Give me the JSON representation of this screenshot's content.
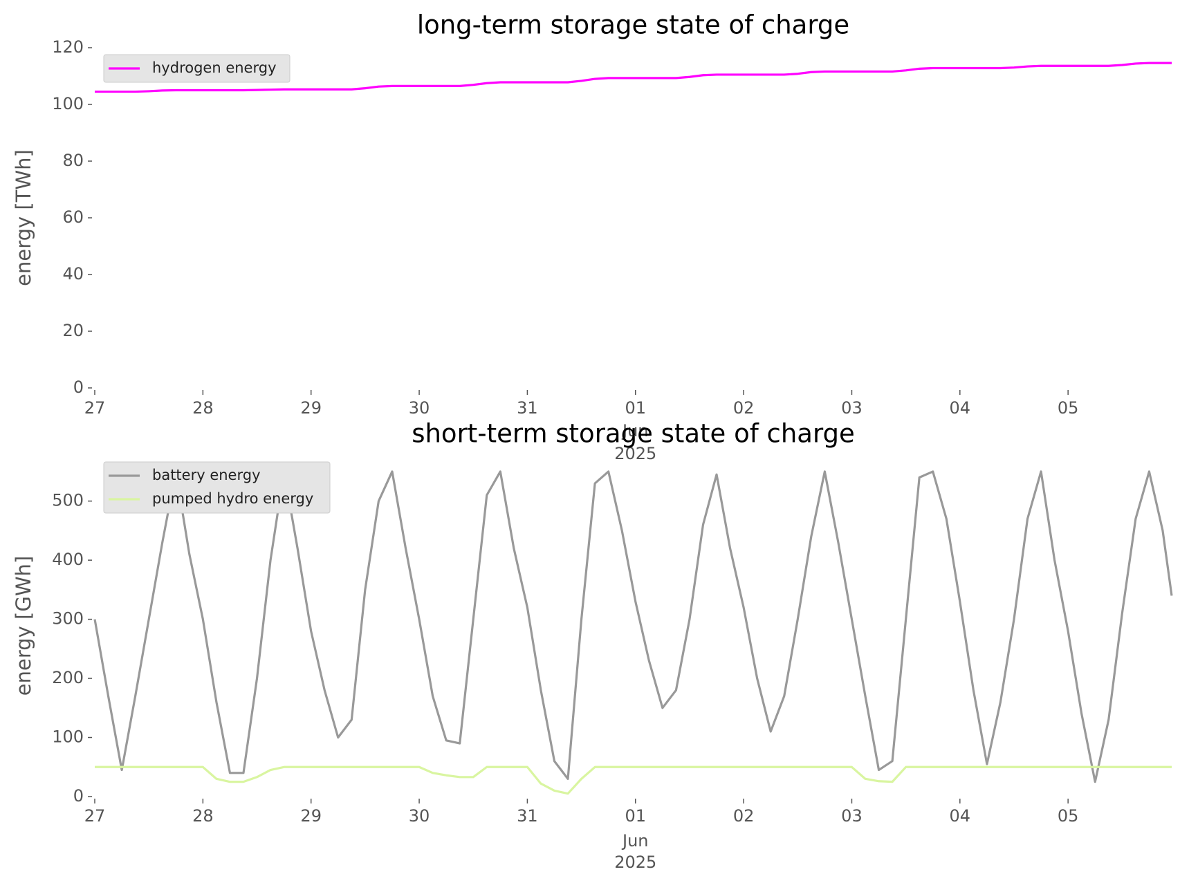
{
  "chart_data": [
    {
      "type": "line",
      "title": "long-term storage state of charge",
      "ylabel": "energy [TWh]",
      "x": [
        "2025-05-27T00:00",
        "2025-05-27T03:00",
        "2025-05-27T06:00",
        "2025-05-27T09:00",
        "2025-05-27T12:00",
        "2025-05-27T15:00",
        "2025-05-27T18:00",
        "2025-05-27T21:00",
        "2025-05-28T00:00",
        "2025-05-28T03:00",
        "2025-05-28T06:00",
        "2025-05-28T09:00",
        "2025-05-28T12:00",
        "2025-05-28T15:00",
        "2025-05-28T18:00",
        "2025-05-28T21:00",
        "2025-05-29T00:00",
        "2025-05-29T03:00",
        "2025-05-29T06:00",
        "2025-05-29T09:00",
        "2025-05-29T12:00",
        "2025-05-29T15:00",
        "2025-05-29T18:00",
        "2025-05-29T21:00",
        "2025-05-30T00:00",
        "2025-05-30T03:00",
        "2025-05-30T06:00",
        "2025-05-30T09:00",
        "2025-05-30T12:00",
        "2025-05-30T15:00",
        "2025-05-30T18:00",
        "2025-05-30T21:00",
        "2025-05-31T00:00",
        "2025-05-31T03:00",
        "2025-05-31T06:00",
        "2025-05-31T09:00",
        "2025-05-31T12:00",
        "2025-05-31T15:00",
        "2025-05-31T18:00",
        "2025-05-31T21:00",
        "2025-06-01T00:00",
        "2025-06-01T03:00",
        "2025-06-01T06:00",
        "2025-06-01T09:00",
        "2025-06-01T12:00",
        "2025-06-01T15:00",
        "2025-06-01T18:00",
        "2025-06-01T21:00",
        "2025-06-02T00:00",
        "2025-06-02T03:00",
        "2025-06-02T06:00",
        "2025-06-02T09:00",
        "2025-06-02T12:00",
        "2025-06-02T15:00",
        "2025-06-02T18:00",
        "2025-06-02T21:00",
        "2025-06-03T00:00",
        "2025-06-03T03:00",
        "2025-06-03T06:00",
        "2025-06-03T09:00",
        "2025-06-03T12:00",
        "2025-06-03T15:00",
        "2025-06-03T18:00",
        "2025-06-03T21:00",
        "2025-06-04T00:00",
        "2025-06-04T03:00",
        "2025-06-04T06:00",
        "2025-06-04T09:00",
        "2025-06-04T12:00",
        "2025-06-04T15:00",
        "2025-06-04T18:00",
        "2025-06-04T21:00",
        "2025-06-05T00:00",
        "2025-06-05T03:00",
        "2025-06-05T06:00",
        "2025-06-05T09:00",
        "2025-06-05T12:00",
        "2025-06-05T15:00",
        "2025-06-05T18:00",
        "2025-06-05T21:00",
        "2025-06-05T23:00"
      ],
      "series": [
        {
          "name": "hydrogen energy",
          "color": "#ff00ff",
          "values": [
            104.5,
            104.5,
            104.5,
            104.5,
            104.65,
            104.9,
            105.0,
            105.0,
            105.0,
            105.0,
            105.0,
            105.0,
            105.1,
            105.2,
            105.3,
            105.3,
            105.3,
            105.3,
            105.3,
            105.3,
            105.7,
            106.3,
            106.5,
            106.5,
            106.5,
            106.5,
            106.5,
            106.5,
            106.9,
            107.5,
            107.8,
            107.8,
            107.8,
            107.8,
            107.8,
            107.8,
            108.3,
            109.0,
            109.3,
            109.3,
            109.3,
            109.3,
            109.3,
            109.3,
            109.7,
            110.3,
            110.5,
            110.5,
            110.5,
            110.5,
            110.5,
            110.5,
            110.8,
            111.4,
            111.6,
            111.6,
            111.6,
            111.6,
            111.6,
            111.6,
            112.0,
            112.6,
            112.8,
            112.8,
            112.8,
            112.8,
            112.8,
            112.8,
            113.0,
            113.4,
            113.6,
            113.6,
            113.6,
            113.6,
            113.6,
            113.6,
            113.9,
            114.4,
            114.6,
            114.6,
            114.6
          ]
        }
      ],
      "xlim": [
        "2025-05-27T00:00",
        "2025-06-05T23:00"
      ],
      "xticks": [
        {
          "value": "2025-05-27T00:00",
          "label": "27"
        },
        {
          "value": "2025-05-28T00:00",
          "label": "28"
        },
        {
          "value": "2025-05-29T00:00",
          "label": "29"
        },
        {
          "value": "2025-05-30T00:00",
          "label": "30"
        },
        {
          "value": "2025-05-31T00:00",
          "label": "31"
        },
        {
          "value": "2025-06-01T00:00",
          "label": "01",
          "sublabels": [
            "Jun",
            "2025"
          ]
        },
        {
          "value": "2025-06-02T00:00",
          "label": "02"
        },
        {
          "value": "2025-06-03T00:00",
          "label": "03"
        },
        {
          "value": "2025-06-04T00:00",
          "label": "04"
        },
        {
          "value": "2025-06-05T00:00",
          "label": "05"
        }
      ],
      "ylim": [
        0,
        120
      ],
      "yticks": [
        0,
        20,
        40,
        60,
        80,
        100,
        120
      ],
      "legend": "upper left",
      "grid": false
    },
    {
      "type": "line",
      "title": "short-term storage state of charge",
      "ylabel": "energy [GWh]",
      "x": [
        "2025-05-27T00:00",
        "2025-05-27T03:00",
        "2025-05-27T06:00",
        "2025-05-27T09:00",
        "2025-05-27T12:00",
        "2025-05-27T15:00",
        "2025-05-27T18:00",
        "2025-05-27T21:00",
        "2025-05-28T00:00",
        "2025-05-28T03:00",
        "2025-05-28T06:00",
        "2025-05-28T09:00",
        "2025-05-28T12:00",
        "2025-05-28T15:00",
        "2025-05-28T18:00",
        "2025-05-28T21:00",
        "2025-05-29T00:00",
        "2025-05-29T03:00",
        "2025-05-29T06:00",
        "2025-05-29T09:00",
        "2025-05-29T12:00",
        "2025-05-29T15:00",
        "2025-05-29T18:00",
        "2025-05-29T21:00",
        "2025-05-30T00:00",
        "2025-05-30T03:00",
        "2025-05-30T06:00",
        "2025-05-30T09:00",
        "2025-05-30T12:00",
        "2025-05-30T15:00",
        "2025-05-30T18:00",
        "2025-05-30T21:00",
        "2025-05-31T00:00",
        "2025-05-31T03:00",
        "2025-05-31T06:00",
        "2025-05-31T09:00",
        "2025-05-31T12:00",
        "2025-05-31T15:00",
        "2025-05-31T18:00",
        "2025-05-31T21:00",
        "2025-06-01T00:00",
        "2025-06-01T03:00",
        "2025-06-01T06:00",
        "2025-06-01T09:00",
        "2025-06-01T12:00",
        "2025-06-01T15:00",
        "2025-06-01T18:00",
        "2025-06-01T21:00",
        "2025-06-02T00:00",
        "2025-06-02T03:00",
        "2025-06-02T06:00",
        "2025-06-02T09:00",
        "2025-06-02T12:00",
        "2025-06-02T15:00",
        "2025-06-02T18:00",
        "2025-06-02T21:00",
        "2025-06-03T00:00",
        "2025-06-03T03:00",
        "2025-06-03T06:00",
        "2025-06-03T09:00",
        "2025-06-03T12:00",
        "2025-06-03T15:00",
        "2025-06-03T18:00",
        "2025-06-03T21:00",
        "2025-06-04T00:00",
        "2025-06-04T03:00",
        "2025-06-04T06:00",
        "2025-06-04T09:00",
        "2025-06-04T12:00",
        "2025-06-04T15:00",
        "2025-06-04T18:00",
        "2025-06-04T21:00",
        "2025-06-05T00:00",
        "2025-06-05T03:00",
        "2025-06-05T06:00",
        "2025-06-05T09:00",
        "2025-06-05T12:00",
        "2025-06-05T15:00",
        "2025-06-05T18:00",
        "2025-06-05T21:00",
        "2025-06-05T23:00"
      ],
      "series": [
        {
          "name": "battery energy",
          "color": "#999999",
          "values": [
            300,
            170,
            45,
            170,
            300,
            430,
            550,
            410,
            300,
            160,
            40,
            40,
            200,
            400,
            550,
            420,
            280,
            180,
            100,
            130,
            350,
            500,
            550,
            420,
            300,
            170,
            95,
            90,
            300,
            510,
            550,
            420,
            320,
            180,
            60,
            30,
            300,
            530,
            550,
            450,
            330,
            230,
            150,
            180,
            300,
            460,
            545,
            420,
            320,
            200,
            110,
            170,
            300,
            440,
            550,
            430,
            300,
            170,
            45,
            60,
            300,
            540,
            550,
            470,
            330,
            180,
            55,
            160,
            300,
            470,
            550,
            400,
            280,
            140,
            25,
            130,
            310,
            470,
            550,
            450,
            340
          ]
        },
        {
          "name": "pumped hydro energy",
          "color": "#d9f5a0",
          "values": [
            50,
            50,
            50,
            50,
            50,
            50,
            50,
            50,
            50,
            30,
            25,
            25,
            33,
            45,
            50,
            50,
            50,
            50,
            50,
            50,
            50,
            50,
            50,
            50,
            50,
            40,
            36,
            33,
            33,
            50,
            50,
            50,
            50,
            22,
            10,
            5,
            30,
            50,
            50,
            50,
            50,
            50,
            50,
            50,
            50,
            50,
            50,
            50,
            50,
            50,
            50,
            50,
            50,
            50,
            50,
            50,
            50,
            30,
            26,
            25,
            50,
            50,
            50,
            50,
            50,
            50,
            50,
            50,
            50,
            50,
            50,
            50,
            50,
            50,
            50,
            50,
            50,
            50,
            50,
            50,
            50
          ]
        }
      ],
      "xlim": [
        "2025-05-27T00:00",
        "2025-06-05T23:00"
      ],
      "xticks": [
        {
          "value": "2025-05-27T00:00",
          "label": "27"
        },
        {
          "value": "2025-05-28T00:00",
          "label": "28"
        },
        {
          "value": "2025-05-29T00:00",
          "label": "29"
        },
        {
          "value": "2025-05-30T00:00",
          "label": "30"
        },
        {
          "value": "2025-05-31T00:00",
          "label": "31"
        },
        {
          "value": "2025-06-01T00:00",
          "label": "01",
          "sublabels": [
            "Jun",
            "2025"
          ]
        },
        {
          "value": "2025-06-02T00:00",
          "label": "02"
        },
        {
          "value": "2025-06-03T00:00",
          "label": "03"
        },
        {
          "value": "2025-06-04T00:00",
          "label": "04"
        },
        {
          "value": "2025-06-05T00:00",
          "label": "05"
        }
      ],
      "ylim": [
        0,
        578
      ],
      "yticks": [
        0,
        100,
        200,
        300,
        400,
        500
      ],
      "legend": "upper left",
      "grid": false
    }
  ]
}
